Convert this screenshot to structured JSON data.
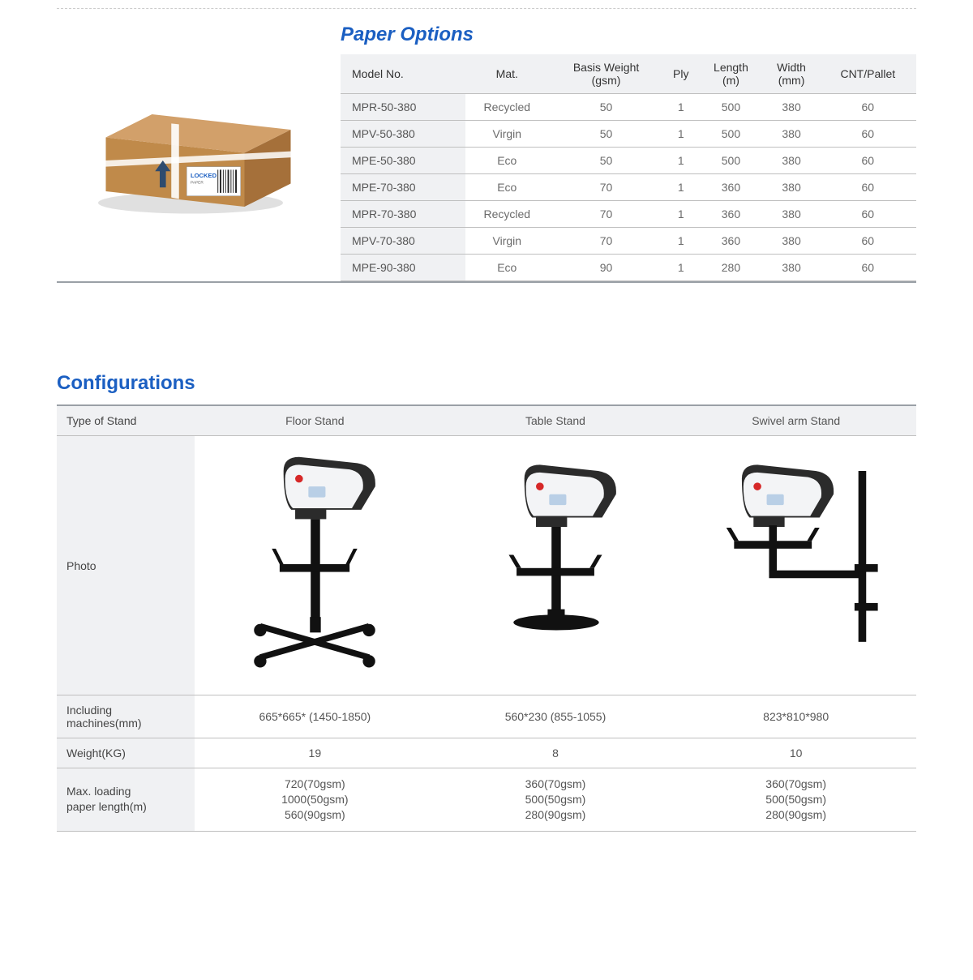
{
  "colors": {
    "title": "#1b5fc2",
    "text": "#4a4a4a",
    "muted": "#6b6b6b",
    "row_bg": "#f0f1f3",
    "border": "#bfbfbf",
    "strong_border": "#9aa0a6",
    "dashed": "#cccccc",
    "box_cardboard": "#c08a4a",
    "box_cardboard_dark": "#a5703a",
    "box_cardboard_top": "#d2a06a",
    "label_white": "#ffffff",
    "machine_white": "#f3f4f6",
    "machine_dark": "#2b2b2b",
    "machine_black": "#111111",
    "red": "#d62828",
    "screen": "#b9cfe6"
  },
  "paper": {
    "title": "Paper Options",
    "image_alt": "Cardboard box with strap and LOCKED PAPER label",
    "columns": [
      "Model No.",
      "Mat.",
      "Basis Weight (gsm)",
      "Ply",
      "Length (m)",
      "Width (mm)",
      "CNT/Pallet"
    ],
    "col_basis_l1": "Basis Weight",
    "col_basis_l2": "(gsm)",
    "col_length_l1": "Length",
    "col_length_l2": "(m)",
    "col_width_l1": "Width",
    "col_width_l2": "(mm)",
    "rows": [
      {
        "model": "MPR-50-380",
        "mat": "Recycled",
        "gsm": "50",
        "ply": "1",
        "len": "500",
        "wid": "380",
        "cnt": "60"
      },
      {
        "model": "MPV-50-380",
        "mat": "Virgin",
        "gsm": "50",
        "ply": "1",
        "len": "500",
        "wid": "380",
        "cnt": "60"
      },
      {
        "model": "MPE-50-380",
        "mat": "Eco",
        "gsm": "50",
        "ply": "1",
        "len": "500",
        "wid": "380",
        "cnt": "60"
      },
      {
        "model": "MPE-70-380",
        "mat": "Eco",
        "gsm": "70",
        "ply": "1",
        "len": "360",
        "wid": "380",
        "cnt": "60"
      },
      {
        "model": "MPR-70-380",
        "mat": "Recycled",
        "gsm": "70",
        "ply": "1",
        "len": "360",
        "wid": "380",
        "cnt": "60"
      },
      {
        "model": "MPV-70-380",
        "mat": "Virgin",
        "gsm": "70",
        "ply": "1",
        "len": "360",
        "wid": "380",
        "cnt": "60"
      },
      {
        "model": "MPE-90-380",
        "mat": "Eco",
        "gsm": "90",
        "ply": "1",
        "len": "280",
        "wid": "380",
        "cnt": "60"
      }
    ],
    "label_text": "LOCKED"
  },
  "config": {
    "title": "Configurations",
    "row_labels": {
      "type": "Type of Stand",
      "photo": "Photo",
      "dims": "Including machines(mm)",
      "weight": "Weight(KG)",
      "maxload_l1": "Max. loading",
      "maxload_l2": "paper length(m)"
    },
    "stands": [
      {
        "name": "Floor Stand",
        "dims": "665*665* (1450-1850)",
        "weight": "19",
        "max_l1": "720(70gsm)",
        "max_l2": "1000(50gsm)",
        "max_l3": "560(90gsm)"
      },
      {
        "name": "Table Stand",
        "dims": "560*230 (855-1055)",
        "weight": "8",
        "max_l1": "360(70gsm)",
        "max_l2": "500(50gsm)",
        "max_l3": "280(90gsm)"
      },
      {
        "name": "Swivel arm Stand",
        "dims": "823*810*980",
        "weight": "10",
        "max_l1": "360(70gsm)",
        "max_l2": "500(50gsm)",
        "max_l3": "280(90gsm)"
      }
    ]
  }
}
